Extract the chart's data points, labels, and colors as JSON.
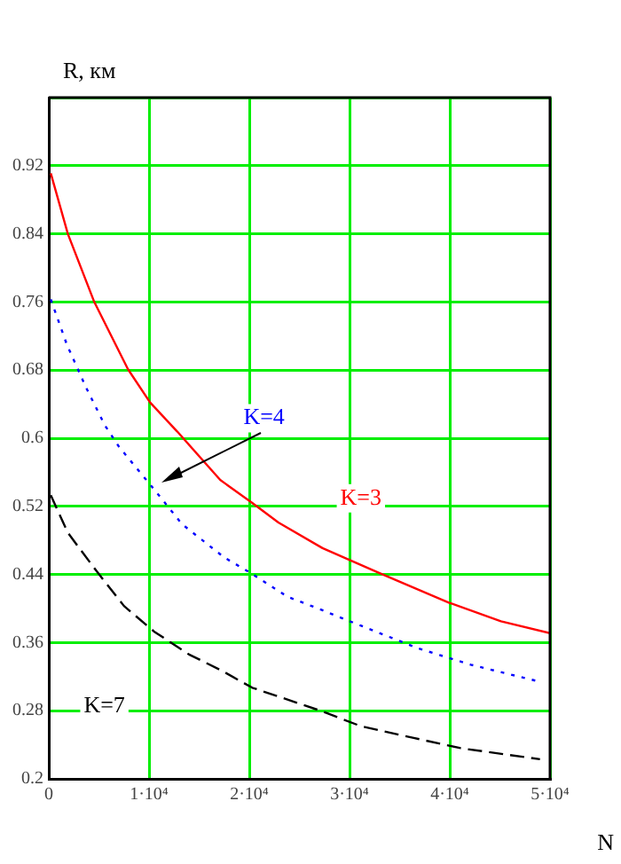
{
  "chart_data": {
    "type": "line",
    "xlabel": "N",
    "ylabel": "R, км",
    "xlim": [
      0,
      50000
    ],
    "xticks": [
      0,
      {
        "value": 10000,
        "label": "1·10⁴"
      },
      {
        "value": 20000,
        "label": "2·10⁴"
      },
      {
        "value": 30000,
        "label": "3·10⁴"
      },
      {
        "value": 40000,
        "label": "4·10⁴"
      },
      {
        "value": 50000,
        "label": "5·10⁴"
      }
    ],
    "ylim": [
      0.2,
      1.0
    ],
    "yticks": [
      0.2,
      0.28,
      0.36,
      0.44,
      0.52,
      0.6,
      0.68,
      0.76,
      0.84,
      0.92,
      {
        "value": 1.0,
        "label": null
      }
    ],
    "grid": true,
    "legend": false,
    "marker": "none",
    "series": [
      {
        "name": "K=3",
        "color": "#ff0000",
        "line_style": "solid",
        "x": [
          200,
          1900,
          4500,
          7900,
          10100,
          12800,
          17100,
          20300,
          22900,
          27300,
          32900,
          39900,
          45100,
          50000
        ],
        "values": [
          0.911,
          0.84,
          0.761,
          0.681,
          0.642,
          0.608,
          0.551,
          0.524,
          0.501,
          0.471,
          0.442,
          0.407,
          0.385,
          0.371
        ]
      },
      {
        "name": "K=4",
        "color": "#0000ff",
        "line_style": "dotted",
        "x": [
          200,
          1800,
          3700,
          5600,
          7000,
          10500,
          13300,
          17500,
          20100,
          23800,
          27300,
          31100,
          36900,
          42100,
          49000
        ],
        "values": [
          0.763,
          0.71,
          0.66,
          0.615,
          0.59,
          0.54,
          0.499,
          0.46,
          0.442,
          0.414,
          0.398,
          0.38,
          0.353,
          0.334,
          0.314
        ]
      },
      {
        "name": "K=7",
        "color": "#000000",
        "line_style": "dashed",
        "x": [
          200,
          1900,
          4500,
          7500,
          10500,
          14000,
          17100,
          20300,
          27100,
          31100,
          36400,
          41100,
          49000
        ],
        "values": [
          0.533,
          0.489,
          0.448,
          0.403,
          0.373,
          0.346,
          0.328,
          0.307,
          0.28,
          0.262,
          0.248,
          0.236,
          0.223
        ]
      }
    ]
  }
}
